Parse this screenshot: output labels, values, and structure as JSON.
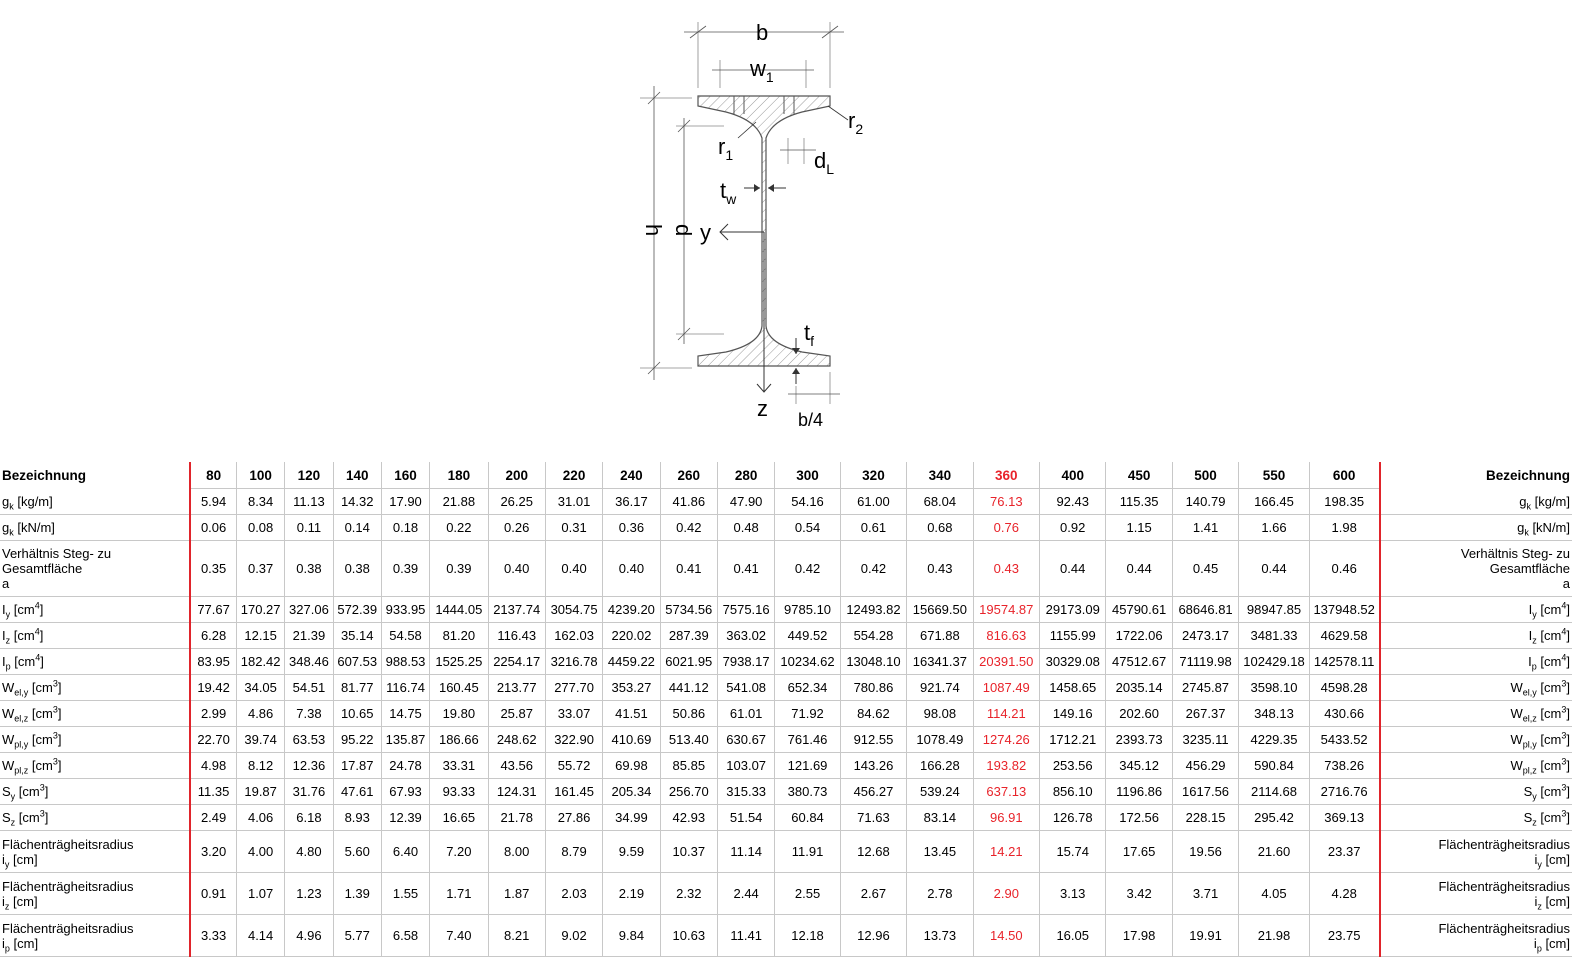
{
  "figure": {
    "labels": {
      "b": "b",
      "w1": "w",
      "w1_sub": "1",
      "r2": "r",
      "r2_sub": "2",
      "r1": "r",
      "r1_sub": "1",
      "dL": "d",
      "dL_sub": "L",
      "tw": "t",
      "tw_sub": "w",
      "h": "h",
      "d": "d",
      "y": "y",
      "tf": "t",
      "tf_sub": "f",
      "z": "z",
      "b4": "b/4"
    }
  },
  "table": {
    "header_label": "Bezeichnung",
    "columns": [
      "80",
      "100",
      "120",
      "140",
      "160",
      "180",
      "200",
      "220",
      "240",
      "260",
      "280",
      "300",
      "320",
      "340",
      "360",
      "400",
      "450",
      "500",
      "550",
      "600"
    ],
    "highlight_column": "360",
    "colors": {
      "highlight": "#e8232a",
      "separator": "#e0242b",
      "grid": "#c8c8c8"
    },
    "rows": [
      {
        "label": [
          "g",
          "k",
          "sub",
          " [kg/m]"
        ],
        "values": [
          "5.94",
          "8.34",
          "11.13",
          "14.32",
          "17.90",
          "21.88",
          "26.25",
          "31.01",
          "36.17",
          "41.86",
          "47.90",
          "54.16",
          "61.00",
          "68.04",
          "76.13",
          "92.43",
          "115.35",
          "140.79",
          "166.45",
          "198.35"
        ]
      },
      {
        "label": [
          "g",
          "k",
          "sub",
          " [kN/m]"
        ],
        "values": [
          "0.06",
          "0.08",
          "0.11",
          "0.14",
          "0.18",
          "0.22",
          "0.26",
          "0.31",
          "0.36",
          "0.42",
          "0.48",
          "0.54",
          "0.61",
          "0.68",
          "0.76",
          "0.92",
          "1.15",
          "1.41",
          "1.66",
          "1.98"
        ]
      },
      {
        "label_lines": [
          "Verhältnis Steg- zu",
          "Gesamtfläche",
          "a"
        ],
        "values": [
          "0.35",
          "0.37",
          "0.38",
          "0.38",
          "0.39",
          "0.39",
          "0.40",
          "0.40",
          "0.40",
          "0.41",
          "0.41",
          "0.42",
          "0.42",
          "0.43",
          "0.43",
          "0.44",
          "0.44",
          "0.45",
          "0.44",
          "0.46"
        ]
      },
      {
        "label": [
          "I",
          "y",
          "sub",
          " [cm",
          "4",
          "]"
        ],
        "values": [
          "77.67",
          "170.27",
          "327.06",
          "572.39",
          "933.95",
          "1444.05",
          "2137.74",
          "3054.75",
          "4239.20",
          "5734.56",
          "7575.16",
          "9785.10",
          "12493.82",
          "15669.50",
          "19574.87",
          "29173.09",
          "45790.61",
          "68646.81",
          "98947.85",
          "137948.52"
        ]
      },
      {
        "label": [
          "I",
          "z",
          "sub",
          " [cm",
          "4",
          "]"
        ],
        "values": [
          "6.28",
          "12.15",
          "21.39",
          "35.14",
          "54.58",
          "81.20",
          "116.43",
          "162.03",
          "220.02",
          "287.39",
          "363.02",
          "449.52",
          "554.28",
          "671.88",
          "816.63",
          "1155.99",
          "1722.06",
          "2473.17",
          "3481.33",
          "4629.58"
        ]
      },
      {
        "label": [
          "I",
          "p",
          "sub",
          " [cm",
          "4",
          "]"
        ],
        "values": [
          "83.95",
          "182.42",
          "348.46",
          "607.53",
          "988.53",
          "1525.25",
          "2254.17",
          "3216.78",
          "4459.22",
          "6021.95",
          "7938.17",
          "10234.62",
          "13048.10",
          "16341.37",
          "20391.50",
          "30329.08",
          "47512.67",
          "71119.98",
          "102429.18",
          "142578.11"
        ]
      },
      {
        "label": [
          "W",
          "el,y",
          "sub",
          " [cm",
          "3",
          "]"
        ],
        "values": [
          "19.42",
          "34.05",
          "54.51",
          "81.77",
          "116.74",
          "160.45",
          "213.77",
          "277.70",
          "353.27",
          "441.12",
          "541.08",
          "652.34",
          "780.86",
          "921.74",
          "1087.49",
          "1458.65",
          "2035.14",
          "2745.87",
          "3598.10",
          "4598.28"
        ]
      },
      {
        "label": [
          "W",
          "el,z",
          "sub",
          " [cm",
          "3",
          "]"
        ],
        "values": [
          "2.99",
          "4.86",
          "7.38",
          "10.65",
          "14.75",
          "19.80",
          "25.87",
          "33.07",
          "41.51",
          "50.86",
          "61.01",
          "71.92",
          "84.62",
          "98.08",
          "114.21",
          "149.16",
          "202.60",
          "267.37",
          "348.13",
          "430.66"
        ]
      },
      {
        "label": [
          "W",
          "pl,y",
          "sub",
          " [cm",
          "3",
          "]"
        ],
        "values": [
          "22.70",
          "39.74",
          "63.53",
          "95.22",
          "135.87",
          "186.66",
          "248.62",
          "322.90",
          "410.69",
          "513.40",
          "630.67",
          "761.46",
          "912.55",
          "1078.49",
          "1274.26",
          "1712.21",
          "2393.73",
          "3235.11",
          "4229.35",
          "5433.52"
        ]
      },
      {
        "label": [
          "W",
          "pl,z",
          "sub",
          " [cm",
          "3",
          "]"
        ],
        "values": [
          "4.98",
          "8.12",
          "12.36",
          "17.87",
          "24.78",
          "33.31",
          "43.56",
          "55.72",
          "69.98",
          "85.85",
          "103.07",
          "121.69",
          "143.26",
          "166.28",
          "193.82",
          "253.56",
          "345.12",
          "456.29",
          "590.84",
          "738.26"
        ]
      },
      {
        "label": [
          "S",
          "y",
          "sub",
          " [cm",
          "3",
          "]"
        ],
        "values": [
          "11.35",
          "19.87",
          "31.76",
          "47.61",
          "67.93",
          "93.33",
          "124.31",
          "161.45",
          "205.34",
          "256.70",
          "315.33",
          "380.73",
          "456.27",
          "539.24",
          "637.13",
          "856.10",
          "1196.86",
          "1617.56",
          "2114.68",
          "2716.76"
        ]
      },
      {
        "label": [
          "S",
          "z",
          "sub",
          " [cm",
          "3",
          "]"
        ],
        "values": [
          "2.49",
          "4.06",
          "6.18",
          "8.93",
          "12.39",
          "16.65",
          "21.78",
          "27.86",
          "34.99",
          "42.93",
          "51.54",
          "60.84",
          "71.63",
          "83.14",
          "96.91",
          "126.78",
          "172.56",
          "228.15",
          "295.42",
          "369.13"
        ]
      },
      {
        "label_lines": [
          "Flächenträgheitsradius"
        ],
        "label": [
          "i",
          "y",
          "sub",
          " [cm]"
        ],
        "values": [
          "3.20",
          "4.00",
          "4.80",
          "5.60",
          "6.40",
          "7.20",
          "8.00",
          "8.79",
          "9.59",
          "10.37",
          "11.14",
          "11.91",
          "12.68",
          "13.45",
          "14.21",
          "15.74",
          "17.65",
          "19.56",
          "21.60",
          "23.37"
        ]
      },
      {
        "label_lines": [
          "Flächenträgheitsradius"
        ],
        "label": [
          "i",
          "z",
          "sub",
          " [cm]"
        ],
        "values": [
          "0.91",
          "1.07",
          "1.23",
          "1.39",
          "1.55",
          "1.71",
          "1.87",
          "2.03",
          "2.19",
          "2.32",
          "2.44",
          "2.55",
          "2.67",
          "2.78",
          "2.90",
          "3.13",
          "3.42",
          "3.71",
          "4.05",
          "4.28"
        ]
      },
      {
        "label_lines": [
          "Flächenträgheitsradius"
        ],
        "label": [
          "i",
          "p",
          "sub",
          " [cm]"
        ],
        "values": [
          "3.33",
          "4.14",
          "4.96",
          "5.77",
          "6.58",
          "7.40",
          "8.21",
          "9.02",
          "9.84",
          "10.63",
          "11.41",
          "12.18",
          "12.96",
          "13.73",
          "14.50",
          "16.05",
          "17.98",
          "19.91",
          "21.98",
          "23.75"
        ]
      }
    ]
  }
}
